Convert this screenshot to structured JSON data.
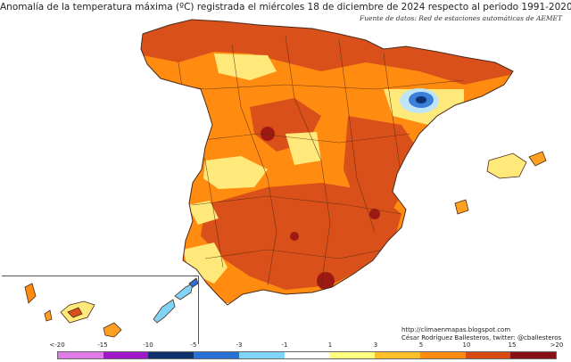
{
  "map": {
    "title": "Anomalía de la temperatura máxima (ºC) registrada el miércoles 18 de diciembre de 2024 respecto al periodo 1991-2020",
    "source": "Fuente de datos: Red de estaciones automáticas de AEMET",
    "credit_url": "http://climaenmapas.blogspot.com",
    "credit_author": "César Rodríguez Ballesteros, twitter: @cballesteros",
    "regions": [
      "Peninsula",
      "Baleares",
      "Canarias"
    ]
  },
  "legend": {
    "labels": [
      "<-20",
      "-15",
      "-10",
      "-5",
      "-3",
      "-1",
      "1",
      "3",
      "5",
      "10",
      "15",
      ">20"
    ],
    "colors": [
      "#e07ae8",
      "#a018c8",
      "#10306e",
      "#2a6fd6",
      "#7fd4f7",
      "#ffffff",
      "#ffff80",
      "#ffc02a",
      "#ff8c10",
      "#d94a12",
      "#8a1018",
      "#6a3a10"
    ]
  },
  "colors": {
    "outline": "#4a2a1a",
    "province_border": "#5a2a10",
    "warm_light": "#ffe97a",
    "warm_orange": "#ffa020",
    "warm_dark": "#d9501a",
    "hot": "#9c1a12",
    "cold_blue": "#3a7fd8",
    "cold_light": "#bfe4f7"
  }
}
